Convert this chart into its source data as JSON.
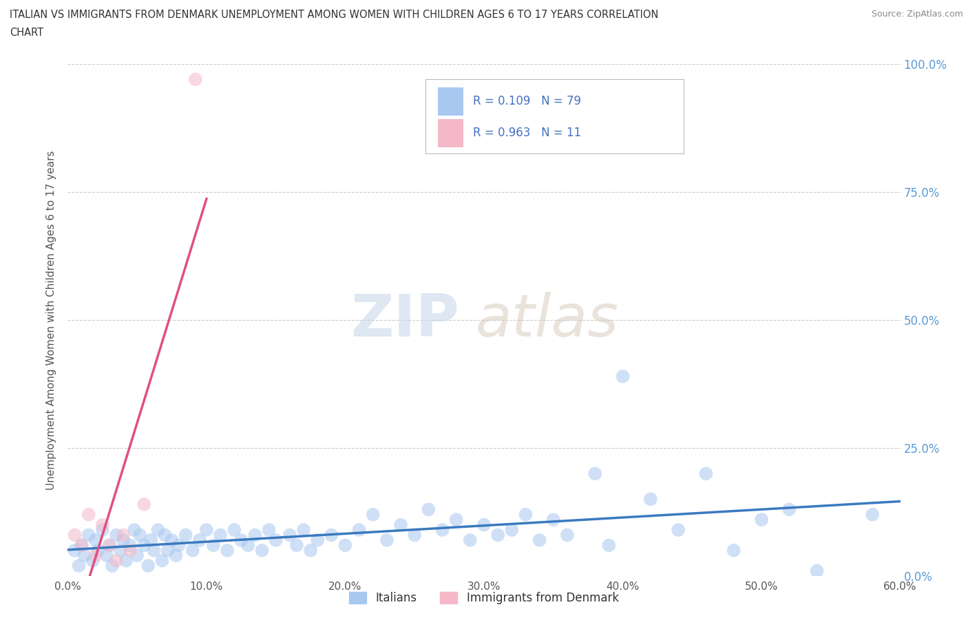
{
  "title_line1": "ITALIAN VS IMMIGRANTS FROM DENMARK UNEMPLOYMENT AMONG WOMEN WITH CHILDREN AGES 6 TO 17 YEARS CORRELATION",
  "title_line2": "CHART",
  "source": "Source: ZipAtlas.com",
  "ylabel": "Unemployment Among Women with Children Ages 6 to 17 years",
  "legend_label1": "Italians",
  "legend_label2": "Immigrants from Denmark",
  "r1": 0.109,
  "n1": 79,
  "r2": 0.963,
  "n2": 11,
  "color1": "#a8c8f0",
  "color2": "#f4b8c8",
  "line_color1": "#3a7abf",
  "line_color2": "#e05080",
  "xlim": [
    0.0,
    0.6
  ],
  "ylim": [
    0.0,
    1.0
  ],
  "x_ticks": [
    0.0,
    0.1,
    0.2,
    0.3,
    0.4,
    0.5,
    0.6
  ],
  "x_tick_labels": [
    "0.0%",
    "10.0%",
    "20.0%",
    "30.0%",
    "40.0%",
    "50.0%",
    "60.0%"
  ],
  "y_ticks": [
    0.0,
    0.25,
    0.5,
    0.75,
    1.0
  ],
  "y_tick_labels": [
    "0.0%",
    "25.0%",
    "50.0%",
    "75.0%",
    "100.0%"
  ],
  "background_color": "#ffffff",
  "watermark_zip": "ZIP",
  "watermark_atlas": "atlas",
  "grid_color": "#cccccc",
  "italians_x": [
    0.005,
    0.008,
    0.01,
    0.012,
    0.015,
    0.018,
    0.02,
    0.022,
    0.025,
    0.028,
    0.03,
    0.032,
    0.035,
    0.038,
    0.04,
    0.042,
    0.045,
    0.048,
    0.05,
    0.052,
    0.055,
    0.058,
    0.06,
    0.062,
    0.065,
    0.068,
    0.07,
    0.072,
    0.075,
    0.078,
    0.08,
    0.085,
    0.09,
    0.095,
    0.1,
    0.105,
    0.11,
    0.115,
    0.12,
    0.125,
    0.13,
    0.135,
    0.14,
    0.145,
    0.15,
    0.16,
    0.165,
    0.17,
    0.175,
    0.18,
    0.19,
    0.2,
    0.21,
    0.22,
    0.23,
    0.24,
    0.25,
    0.26,
    0.27,
    0.28,
    0.29,
    0.3,
    0.31,
    0.32,
    0.33,
    0.34,
    0.35,
    0.36,
    0.38,
    0.39,
    0.4,
    0.42,
    0.44,
    0.46,
    0.48,
    0.5,
    0.52,
    0.54,
    0.58
  ],
  "italians_y": [
    0.05,
    0.02,
    0.06,
    0.04,
    0.08,
    0.03,
    0.07,
    0.05,
    0.09,
    0.04,
    0.06,
    0.02,
    0.08,
    0.05,
    0.07,
    0.03,
    0.06,
    0.09,
    0.04,
    0.08,
    0.06,
    0.02,
    0.07,
    0.05,
    0.09,
    0.03,
    0.08,
    0.05,
    0.07,
    0.04,
    0.06,
    0.08,
    0.05,
    0.07,
    0.09,
    0.06,
    0.08,
    0.05,
    0.09,
    0.07,
    0.06,
    0.08,
    0.05,
    0.09,
    0.07,
    0.08,
    0.06,
    0.09,
    0.05,
    0.07,
    0.08,
    0.06,
    0.09,
    0.12,
    0.07,
    0.1,
    0.08,
    0.13,
    0.09,
    0.11,
    0.07,
    0.1,
    0.08,
    0.09,
    0.12,
    0.07,
    0.11,
    0.08,
    0.2,
    0.06,
    0.39,
    0.15,
    0.09,
    0.2,
    0.05,
    0.11,
    0.13,
    0.01,
    0.12
  ],
  "denmark_x": [
    0.005,
    0.01,
    0.015,
    0.02,
    0.025,
    0.03,
    0.035,
    0.04,
    0.045,
    0.055,
    0.092
  ],
  "denmark_y": [
    0.08,
    0.06,
    0.12,
    0.04,
    0.1,
    0.06,
    0.03,
    0.08,
    0.05,
    0.14,
    0.97
  ]
}
